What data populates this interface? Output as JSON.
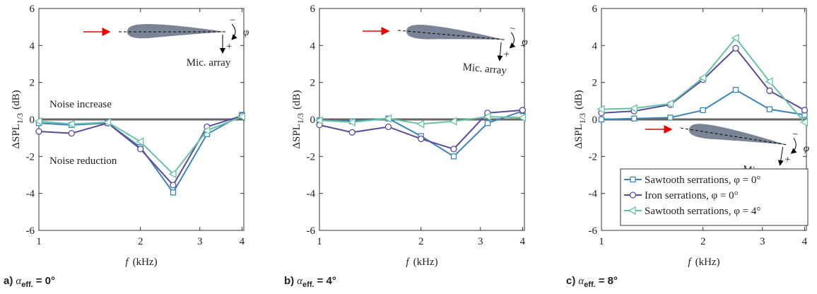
{
  "chart_data": [
    {
      "type": "line",
      "panel_label": [
        "a)",
        "α",
        "eff.",
        "= 0°"
      ],
      "xlabel": [
        "f",
        "(kHz)"
      ],
      "ylabel": [
        "ΔSPL",
        "1/3",
        "(dB)"
      ],
      "x": [
        1,
        1.25,
        1.6,
        2,
        2.5,
        3.15,
        4
      ],
      "xscale": "log",
      "xlim": [
        1,
        4.05
      ],
      "xticks": [
        1,
        2,
        3,
        4
      ],
      "ylim": [
        -6,
        6
      ],
      "yticks": [
        -6,
        -4,
        -2,
        0,
        2,
        4,
        6
      ],
      "hline": 0,
      "annotations": [
        "Noise increase",
        "Noise reduction",
        "Mic. array",
        "φ",
        "+",
        "−"
      ],
      "series": [
        {
          "color": "#3a86b9",
          "marker": "square",
          "values": [
            -0.2,
            -0.3,
            -0.2,
            -1.5,
            -3.95,
            -0.8,
            0.25
          ]
        },
        {
          "color": "#5b4a9c",
          "marker": "circle",
          "values": [
            -0.65,
            -0.75,
            -0.2,
            -1.6,
            -3.55,
            -0.4,
            0.2
          ]
        },
        {
          "color": "#66c2a5",
          "marker": "triangle-left",
          "values": [
            -0.1,
            -0.25,
            -0.15,
            -1.2,
            -2.95,
            -0.6,
            0.15
          ]
        }
      ]
    },
    {
      "type": "line",
      "panel_label": [
        "b)",
        "α",
        "eff.",
        "= 4°"
      ],
      "xlabel": [
        "f",
        "(kHz)"
      ],
      "ylabel": [
        "ΔSPL",
        "1/3",
        "(dB)"
      ],
      "x": [
        1,
        1.25,
        1.6,
        2,
        2.5,
        3.15,
        4
      ],
      "xscale": "log",
      "xlim": [
        1,
        4.05
      ],
      "xticks": [
        1,
        2,
        3,
        4
      ],
      "ylim": [
        -6,
        6
      ],
      "yticks": [
        -6,
        -4,
        -2,
        0,
        2,
        4,
        6
      ],
      "hline": 0,
      "annotations": [
        "Mic. array",
        "φ",
        "+",
        "−"
      ],
      "series": [
        {
          "color": "#3a86b9",
          "marker": "square",
          "values": [
            -0.05,
            -0.1,
            0.05,
            -0.9,
            -2.0,
            -0.2,
            0.45
          ]
        },
        {
          "color": "#5b4a9c",
          "marker": "circle",
          "values": [
            -0.3,
            -0.7,
            -0.4,
            -1.05,
            -1.6,
            0.35,
            0.5
          ]
        },
        {
          "color": "#66c2a5",
          "marker": "triangle-left",
          "values": [
            -0.05,
            -0.15,
            0.05,
            -0.25,
            -0.1,
            0.15,
            0.1
          ]
        }
      ]
    },
    {
      "type": "line",
      "panel_label": [
        "c)",
        "α",
        "eff.",
        "= 8°"
      ],
      "xlabel": [
        "f",
        "(kHz)"
      ],
      "ylabel": [
        "ΔSPL",
        "1/3",
        "(dB)"
      ],
      "x": [
        1,
        1.25,
        1.6,
        2,
        2.5,
        3.15,
        4
      ],
      "xscale": "log",
      "xlim": [
        1,
        4.05
      ],
      "xticks": [
        1,
        2,
        3,
        4
      ],
      "ylim": [
        -6,
        6
      ],
      "yticks": [
        -6,
        -4,
        -2,
        0,
        2,
        4,
        6
      ],
      "hline": 0,
      "legend": "lower right",
      "annotations": [
        "Mic. array",
        "φ",
        "+",
        "−"
      ],
      "series": [
        {
          "name": "Sawtooth serrations, φ = 0°",
          "color": "#3a86b9",
          "marker": "square",
          "values": [
            0.0,
            0.05,
            0.1,
            0.5,
            1.6,
            0.55,
            0.25
          ]
        },
        {
          "name": "Iron serrations, φ = 0°",
          "color": "#5b4a9c",
          "marker": "circle",
          "values": [
            0.35,
            0.45,
            0.8,
            2.15,
            3.85,
            1.55,
            0.5
          ]
        },
        {
          "name": "Sawtooth serrations, φ = 4°",
          "color": "#66c2a5",
          "marker": "triangle-left",
          "values": [
            0.55,
            0.6,
            0.85,
            2.25,
            4.4,
            2.05,
            -0.15
          ]
        }
      ]
    }
  ]
}
